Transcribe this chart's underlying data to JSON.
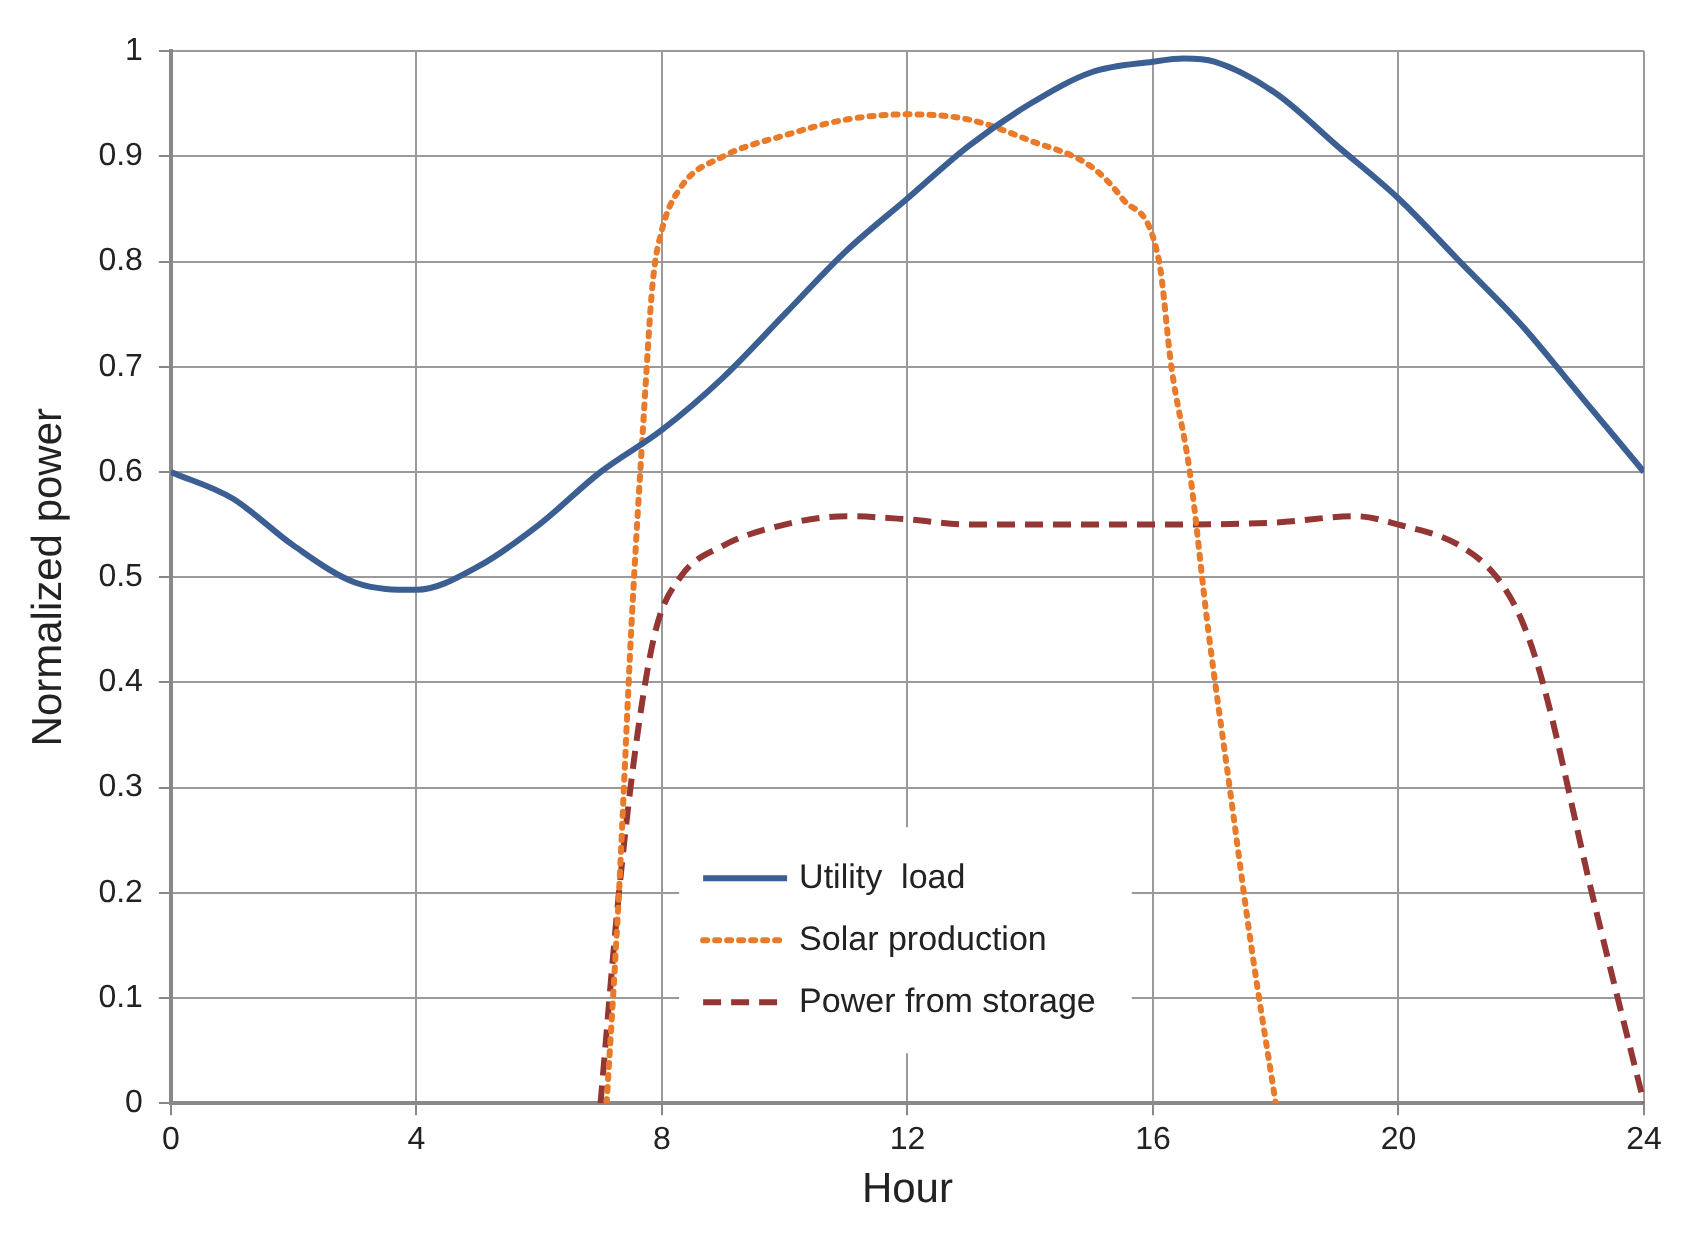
{
  "chart_data": {
    "type": "line",
    "xlabel": "Hour",
    "ylabel": "Normalized power",
    "xlim": [
      0,
      24
    ],
    "xticks": [
      0,
      4,
      8,
      12,
      16,
      20,
      24
    ],
    "ylim": [
      0,
      1
    ],
    "yticks": [
      0,
      0.1,
      0.2,
      0.3,
      0.4,
      0.5,
      0.6,
      0.7,
      0.8,
      0.9,
      1
    ],
    "grid": true,
    "legend": "bottom",
    "marker": "none",
    "series": [
      {
        "name": "Utility  load",
        "color": "#3b5f93",
        "line_style": "solid",
        "x": [
          0,
          1,
          2,
          3,
          4,
          5,
          6,
          7,
          8,
          9,
          10,
          11,
          12,
          13,
          14,
          15,
          16,
          16.5,
          17,
          18,
          19,
          20,
          21,
          22,
          23,
          24
        ],
        "values": [
          0.6,
          0.575,
          0.53,
          0.495,
          0.488,
          0.51,
          0.55,
          0.6,
          0.64,
          0.69,
          0.75,
          0.81,
          0.86,
          0.91,
          0.95,
          0.98,
          0.99,
          0.993,
          0.99,
          0.96,
          0.91,
          0.86,
          0.8,
          0.74,
          0.67,
          0.6
        ]
      },
      {
        "name": "Solar production",
        "color": "#e87a2a",
        "line_style": "dotted",
        "x": [
          7.1,
          7.3,
          7.5,
          7.7,
          7.85,
          8,
          8.3,
          9,
          10,
          11,
          12,
          13,
          14,
          15,
          15.5,
          16.1,
          16.3,
          16.6,
          16.9,
          17.25,
          17.6,
          18
        ],
        "values": [
          0,
          0.2,
          0.45,
          0.65,
          0.78,
          0.83,
          0.87,
          0.9,
          0.92,
          0.935,
          0.94,
          0.935,
          0.915,
          0.89,
          0.86,
          0.8,
          0.7,
          0.6,
          0.45,
          0.3,
          0.15,
          0
        ]
      },
      {
        "name": "Power from storage",
        "color": "#943634",
        "line_style": "dashed",
        "x": [
          7,
          7.3,
          7.6,
          7.9,
          8.3,
          9,
          10,
          11,
          12,
          13,
          14,
          16,
          18,
          19.3,
          20,
          21,
          21.6,
          22,
          22.35,
          23.15,
          24
        ],
        "values": [
          0,
          0.2,
          0.35,
          0.45,
          0.5,
          0.53,
          0.55,
          0.558,
          0.555,
          0.55,
          0.55,
          0.55,
          0.552,
          0.558,
          0.55,
          0.53,
          0.5,
          0.46,
          0.4,
          0.2,
          0
        ]
      }
    ]
  }
}
